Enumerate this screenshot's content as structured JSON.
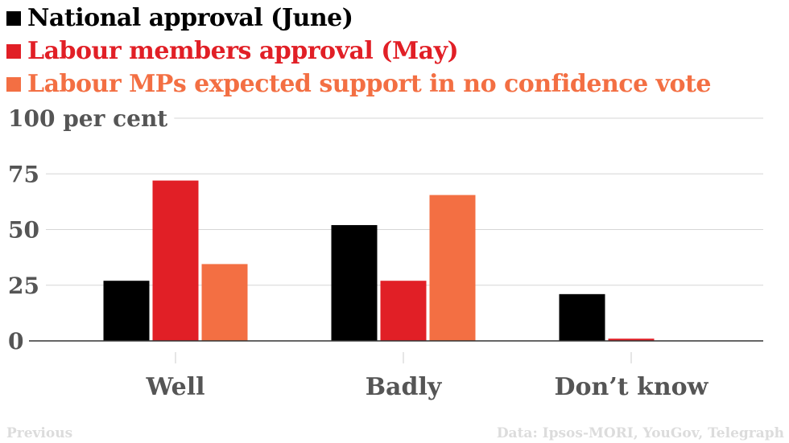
{
  "legend": [
    {
      "label": "National approval (June)",
      "color": "#000000"
    },
    {
      "label": "Labour members approval (May)",
      "color": "#e11f26"
    },
    {
      "label": "Labour MPs expected support in no confidence vote",
      "color": "#f36f43"
    }
  ],
  "footer": {
    "previous": "Previous",
    "source": "Data: Ipsos-MORI, YouGov, Telegraph"
  },
  "chart_data": {
    "type": "bar",
    "categories": [
      "Well",
      "Badly",
      "Don’t know"
    ],
    "series": [
      {
        "name": "National approval (June)",
        "color": "#000000",
        "values": [
          27,
          52,
          21
        ]
      },
      {
        "name": "Labour members approval (May)",
        "color": "#e11f26",
        "values": [
          72,
          27,
          1
        ]
      },
      {
        "name": "Labour MPs expected support in no confidence vote",
        "color": "#f36f43",
        "values": [
          34.5,
          65.5,
          0
        ]
      }
    ],
    "yticks": [
      {
        "value": 0,
        "label": "0"
      },
      {
        "value": 25,
        "label": "25"
      },
      {
        "value": 50,
        "label": "50"
      },
      {
        "value": 75,
        "label": "75"
      },
      {
        "value": 100,
        "label": "100 per cent"
      }
    ],
    "ylim": [
      0,
      100
    ],
    "grid": true,
    "legend_position": "top-left",
    "title": "",
    "xlabel": "",
    "ylabel": ""
  }
}
